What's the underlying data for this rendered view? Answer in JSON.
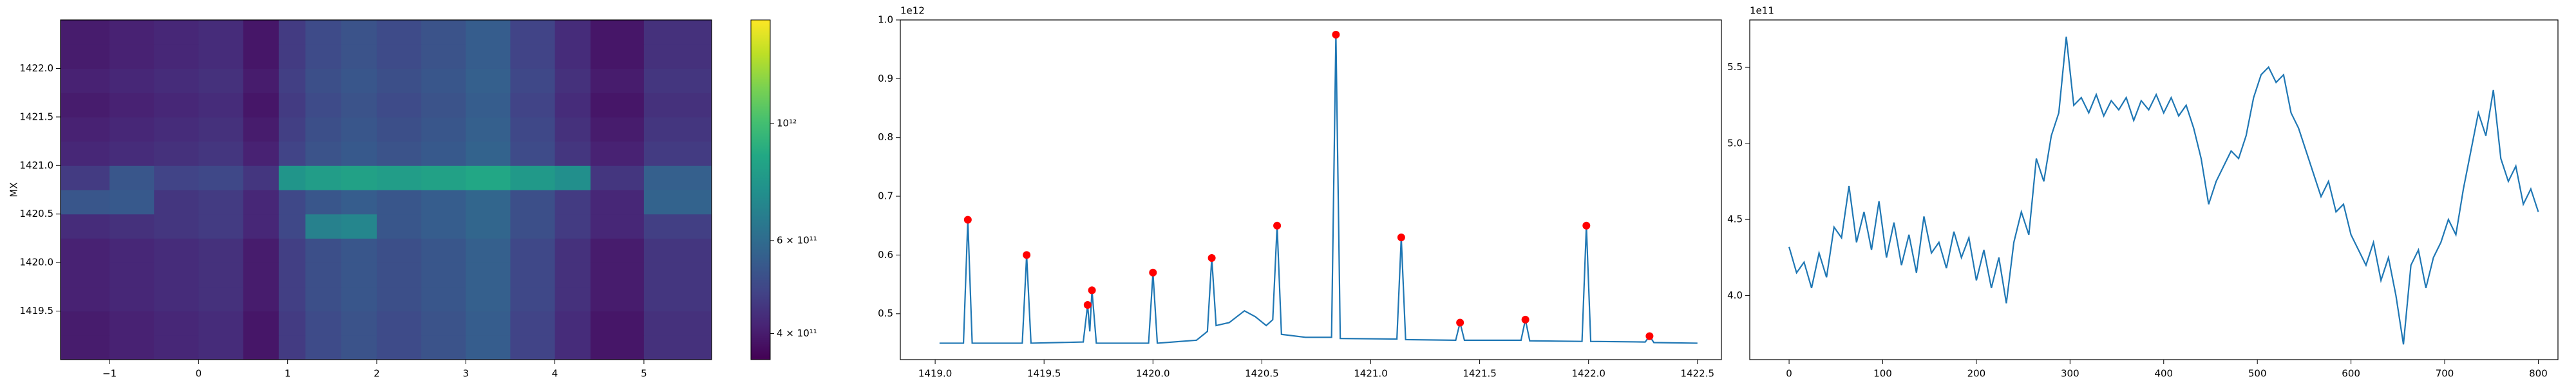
{
  "chart_data": [
    {
      "type": "heatmap",
      "ylabel": "MX",
      "colormap": "viridis",
      "xlim": [
        -1.55,
        5.76
      ],
      "ylim": [
        1419.0,
        1422.5
      ],
      "xticks": [
        {
          "value": -1,
          "label": "−1"
        },
        0,
        1,
        2,
        3,
        4,
        5
      ],
      "yticks": [
        1419.5,
        {
          "value": 1420,
          "label": "1420.0"
        },
        1420.5,
        {
          "value": 1421,
          "label": "1421.0"
        },
        1421.5,
        {
          "value": 1422,
          "label": "1422.0"
        }
      ],
      "xbins": [
        -1.55,
        -1.0,
        -0.5,
        0,
        0.5,
        0.9,
        1.2,
        1.6,
        2.0,
        2.5,
        3.0,
        3.5,
        4.0,
        4.4,
        5.0,
        5.76
      ],
      "ybins": [
        1419.0,
        1419.25,
        1419.5,
        1419.75,
        1420.0,
        1420.25,
        1420.5,
        1420.75,
        1421.0,
        1421.25,
        1421.5,
        1421.75,
        1422.0,
        1422.25,
        1422.5
      ],
      "z": [
        [
          400000000000.0,
          410000000000.0,
          420000000000.0,
          430000000000.0,
          390000000000.0,
          460000000000.0,
          500000000000.0,
          520000000000.0,
          500000000000.0,
          520000000000.0,
          550000000000.0,
          480000000000.0,
          430000000000.0,
          390000000000.0,
          440000000000.0
        ],
        [
          400000000000.0,
          410000000000.0,
          420000000000.0,
          430000000000.0,
          390000000000.0,
          460000000000.0,
          500000000000.0,
          520000000000.0,
          500000000000.0,
          520000000000.0,
          550000000000.0,
          480000000000.0,
          430000000000.0,
          390000000000.0,
          440000000000.0
        ],
        [
          410000000000.0,
          420000000000.0,
          430000000000.0,
          440000000000.0,
          400000000000.0,
          470000000000.0,
          510000000000.0,
          530000000000.0,
          510000000000.0,
          530000000000.0,
          560000000000.0,
          490000000000.0,
          440000000000.0,
          400000000000.0,
          450000000000.0
        ],
        [
          410000000000.0,
          420000000000.0,
          430000000000.0,
          440000000000.0,
          400000000000.0,
          470000000000.0,
          510000000000.0,
          530000000000.0,
          510000000000.0,
          530000000000.0,
          560000000000.0,
          490000000000.0,
          440000000000.0,
          400000000000.0,
          450000000000.0
        ],
        [
          410000000000.0,
          420000000000.0,
          430000000000.0,
          440000000000.0,
          400000000000.0,
          470000000000.0,
          510000000000.0,
          530000000000.0,
          510000000000.0,
          530000000000.0,
          560000000000.0,
          490000000000.0,
          440000000000.0,
          400000000000.0,
          450000000000.0
        ],
        [
          430000000000.0,
          440000000000.0,
          450000000000.0,
          460000000000.0,
          420000000000.0,
          490000000000.0,
          680000000000.0,
          700000000000.0,
          530000000000.0,
          550000000000.0,
          580000000000.0,
          510000000000.0,
          460000000000.0,
          420000000000.0,
          470000000000.0
        ],
        [
          530000000000.0,
          540000000000.0,
          450000000000.0,
          460000000000.0,
          420000000000.0,
          490000000000.0,
          530000000000.0,
          550000000000.0,
          530000000000.0,
          550000000000.0,
          580000000000.0,
          510000000000.0,
          460000000000.0,
          420000000000.0,
          570000000000.0
        ],
        [
          460000000000.0,
          530000000000.0,
          480000000000.0,
          490000000000.0,
          450000000000.0,
          770000000000.0,
          810000000000.0,
          830000000000.0,
          810000000000.0,
          830000000000.0,
          860000000000.0,
          790000000000.0,
          740000000000.0,
          450000000000.0,
          560000000000.0
        ],
        [
          420000000000.0,
          430000000000.0,
          440000000000.0,
          450000000000.0,
          410000000000.0,
          480000000000.0,
          520000000000.0,
          540000000000.0,
          520000000000.0,
          540000000000.0,
          570000000000.0,
          500000000000.0,
          450000000000.0,
          410000000000.0,
          460000000000.0
        ],
        [
          410000000000.0,
          420000000000.0,
          430000000000.0,
          440000000000.0,
          400000000000.0,
          470000000000.0,
          510000000000.0,
          530000000000.0,
          510000000000.0,
          530000000000.0,
          560000000000.0,
          490000000000.0,
          440000000000.0,
          400000000000.0,
          450000000000.0
        ],
        [
          400000000000.0,
          410000000000.0,
          420000000000.0,
          430000000000.0,
          390000000000.0,
          460000000000.0,
          500000000000.0,
          520000000000.0,
          500000000000.0,
          520000000000.0,
          550000000000.0,
          480000000000.0,
          430000000000.0,
          390000000000.0,
          440000000000.0
        ],
        [
          410000000000.0,
          420000000000.0,
          430000000000.0,
          440000000000.0,
          400000000000.0,
          470000000000.0,
          510000000000.0,
          530000000000.0,
          510000000000.0,
          530000000000.0,
          560000000000.0,
          490000000000.0,
          440000000000.0,
          400000000000.0,
          450000000000.0
        ],
        [
          400000000000.0,
          410000000000.0,
          420000000000.0,
          430000000000.0,
          390000000000.0,
          460000000000.0,
          500000000000.0,
          520000000000.0,
          500000000000.0,
          520000000000.0,
          550000000000.0,
          480000000000.0,
          430000000000.0,
          390000000000.0,
          440000000000.0
        ],
        [
          400000000000.0,
          410000000000.0,
          420000000000.0,
          430000000000.0,
          390000000000.0,
          460000000000.0,
          500000000000.0,
          520000000000.0,
          500000000000.0,
          520000000000.0,
          550000000000.0,
          480000000000.0,
          430000000000.0,
          390000000000.0,
          440000000000.0
        ]
      ],
      "colorbar": {
        "log": true,
        "lim": [
          357000000000.0,
          1570000000000.0
        ],
        "ticks": [
          {
            "value": 400000000000.0,
            "label": "4 × 10¹¹"
          },
          {
            "value": 600000000000.0,
            "label": "6 × 10¹¹"
          },
          {
            "value": 1000000000000.0,
            "label": "10¹²"
          }
        ]
      }
    },
    {
      "type": "line",
      "offset_text": "1e12",
      "xlim": [
        1418.84,
        1422.61
      ],
      "ylim": [
        422000000000.0,
        1000000000000.0
      ],
      "xticks": [
        {
          "value": 1419,
          "label": "1419.0"
        },
        1419.5,
        {
          "value": 1420,
          "label": "1420.0"
        },
        1420.5,
        {
          "value": 1421,
          "label": "1421.0"
        },
        1421.5,
        {
          "value": 1422,
          "label": "1422.0"
        },
        1422.5
      ],
      "yticks": [
        {
          "value": 500000000000.0,
          "label": "0.5"
        },
        {
          "value": 600000000000.0,
          "label": "0.6"
        },
        {
          "value": 700000000000.0,
          "label": "0.7"
        },
        {
          "value": 800000000000.0,
          "label": "0.8"
        },
        {
          "value": 900000000000.0,
          "label": "0.9"
        },
        {
          "value": 1000000000000.0,
          "label": "1.0"
        }
      ],
      "series": [
        {
          "type": "line",
          "color": "#1f77b4",
          "x": [
            1419.02,
            1419.13,
            1419.15,
            1419.17,
            1419.4,
            1419.42,
            1419.44,
            1419.68,
            1419.7,
            1419.71,
            1419.72,
            1419.74,
            1419.98,
            1420.0,
            1420.02,
            1420.2,
            1420.25,
            1420.27,
            1420.29,
            1420.35,
            1420.42,
            1420.47,
            1420.52,
            1420.55,
            1420.57,
            1420.59,
            1420.7,
            1420.82,
            1420.84,
            1420.86,
            1421.12,
            1421.14,
            1421.16,
            1421.39,
            1421.41,
            1421.43,
            1421.69,
            1421.71,
            1421.73,
            1421.97,
            1421.99,
            1422.01,
            1422.26,
            1422.28,
            1422.3,
            1422.5
          ],
          "values": [
            450000000000.0,
            450000000000.0,
            660000000000.0,
            450000000000.0,
            450000000000.0,
            600000000000.0,
            450000000000.0,
            452000000000.0,
            515000000000.0,
            470000000000.0,
            540000000000.0,
            450000000000.0,
            450000000000.0,
            570000000000.0,
            450000000000.0,
            455000000000.0,
            470000000000.0,
            595000000000.0,
            480000000000.0,
            485000000000.0,
            505000000000.0,
            495000000000.0,
            480000000000.0,
            490000000000.0,
            650000000000.0,
            465000000000.0,
            460000000000.0,
            460000000000.0,
            975000000000.0,
            458000000000.0,
            457000000000.0,
            630000000000.0,
            456000000000.0,
            455000000000.0,
            485000000000.0,
            455000000000.0,
            455000000000.0,
            490000000000.0,
            454000000000.0,
            453000000000.0,
            650000000000.0,
            453000000000.0,
            452000000000.0,
            462000000000.0,
            451000000000.0,
            450000000000.0
          ]
        },
        {
          "type": "scatter",
          "color": "#ff0000",
          "x": [
            1419.15,
            1419.42,
            1419.7,
            1419.72,
            1420.0,
            1420.27,
            1420.57,
            1420.84,
            1421.14,
            1421.41,
            1421.71,
            1421.99,
            1422.28
          ],
          "values": [
            660000000000.0,
            600000000000.0,
            515000000000.0,
            540000000000.0,
            570000000000.0,
            595000000000.0,
            650000000000.0,
            975000000000.0,
            630000000000.0,
            485000000000.0,
            490000000000.0,
            650000000000.0,
            462000000000.0
          ]
        }
      ]
    },
    {
      "type": "line",
      "offset_text": "1e11",
      "xlim": [
        -42,
        821
      ],
      "ylim": [
        358000000000.0,
        581000000000.0
      ],
      "xticks": [
        0,
        100,
        200,
        300,
        400,
        500,
        600,
        700,
        800
      ],
      "yticks": [
        {
          "value": 400000000000.0,
          "label": "4.0"
        },
        {
          "value": 450000000000.0,
          "label": "4.5"
        },
        {
          "value": 500000000000.0,
          "label": "5.0"
        },
        {
          "value": 550000000000.0,
          "label": "5.5"
        }
      ],
      "series": [
        {
          "type": "line",
          "color": "#1f77b4",
          "x": [
            0,
            8,
            16,
            24,
            32,
            40,
            48,
            56,
            64,
            72,
            80,
            88,
            96,
            104,
            112,
            120,
            128,
            136,
            144,
            152,
            160,
            168,
            176,
            184,
            192,
            200,
            208,
            216,
            224,
            232,
            240,
            248,
            256,
            264,
            272,
            280,
            288,
            296,
            304,
            312,
            320,
            328,
            336,
            344,
            352,
            360,
            368,
            376,
            384,
            392,
            400,
            408,
            416,
            424,
            432,
            440,
            448,
            456,
            464,
            472,
            480,
            488,
            496,
            504,
            512,
            520,
            528,
            536,
            544,
            552,
            560,
            568,
            576,
            584,
            592,
            600,
            608,
            616,
            624,
            632,
            640,
            648,
            656,
            664,
            672,
            680,
            688,
            696,
            704,
            712,
            720,
            728,
            736,
            744,
            752,
            760,
            768,
            776,
            784,
            792,
            800
          ],
          "values": [
            432000000000.0,
            415000000000.0,
            422000000000.0,
            405000000000.0,
            428000000000.0,
            412000000000.0,
            445000000000.0,
            438000000000.0,
            472000000000.0,
            435000000000.0,
            455000000000.0,
            430000000000.0,
            462000000000.0,
            425000000000.0,
            448000000000.0,
            420000000000.0,
            440000000000.0,
            415000000000.0,
            452000000000.0,
            428000000000.0,
            435000000000.0,
            418000000000.0,
            442000000000.0,
            425000000000.0,
            438000000000.0,
            410000000000.0,
            430000000000.0,
            405000000000.0,
            425000000000.0,
            395000000000.0,
            435000000000.0,
            455000000000.0,
            440000000000.0,
            490000000000.0,
            475000000000.0,
            505000000000.0,
            520000000000.0,
            570000000000.0,
            525000000000.0,
            530000000000.0,
            520000000000.0,
            532000000000.0,
            518000000000.0,
            528000000000.0,
            522000000000.0,
            530000000000.0,
            515000000000.0,
            528000000000.0,
            522000000000.0,
            532000000000.0,
            520000000000.0,
            530000000000.0,
            518000000000.0,
            525000000000.0,
            510000000000.0,
            490000000000.0,
            460000000000.0,
            475000000000.0,
            485000000000.0,
            495000000000.0,
            490000000000.0,
            505000000000.0,
            530000000000.0,
            545000000000.0,
            550000000000.0,
            540000000000.0,
            545000000000.0,
            520000000000.0,
            510000000000.0,
            495000000000.0,
            480000000000.0,
            465000000000.0,
            475000000000.0,
            455000000000.0,
            460000000000.0,
            440000000000.0,
            430000000000.0,
            420000000000.0,
            435000000000.0,
            410000000000.0,
            425000000000.0,
            400000000000.0,
            368000000000.0,
            420000000000.0,
            430000000000.0,
            405000000000.0,
            425000000000.0,
            435000000000.0,
            450000000000.0,
            440000000000.0,
            470000000000.0,
            495000000000.0,
            520000000000.0,
            505000000000.0,
            535000000000.0,
            490000000000.0,
            475000000000.0,
            485000000000.0,
            460000000000.0,
            470000000000.0,
            455000000000.0
          ]
        }
      ]
    }
  ]
}
